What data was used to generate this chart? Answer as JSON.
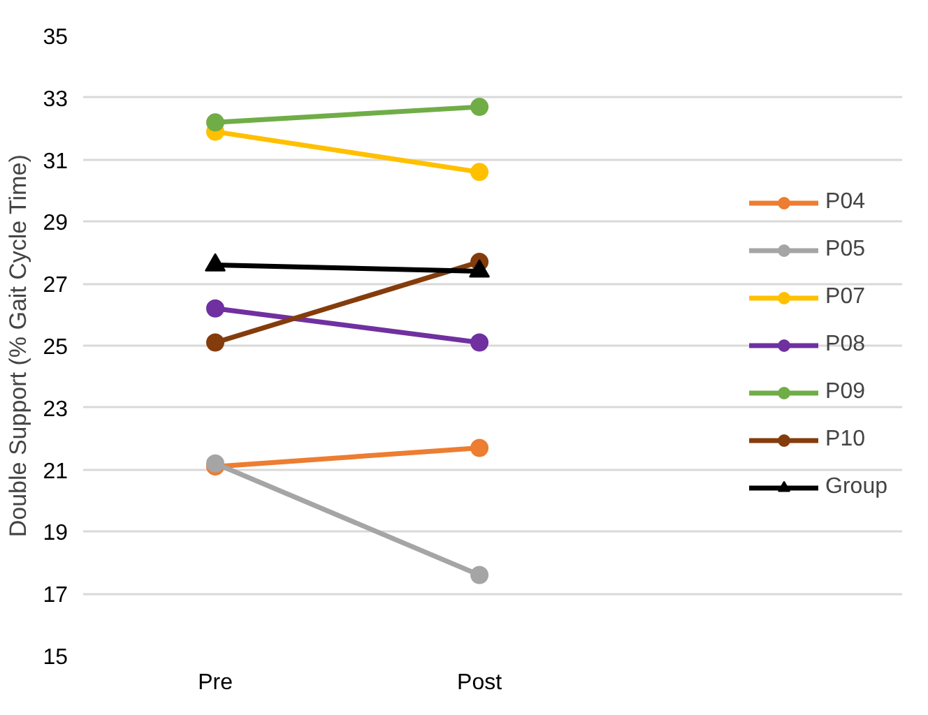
{
  "chart_data": {
    "type": "line",
    "ylabel": "Double Support (% Gait Cycle Time)",
    "categories": [
      "Pre",
      "Post"
    ],
    "series": [
      {
        "name": "P04",
        "color": "#ed7d31",
        "values": [
          21.1,
          21.7
        ]
      },
      {
        "name": "P05",
        "color": "#a5a5a5",
        "values": [
          21.2,
          17.6
        ]
      },
      {
        "name": "P07",
        "color": "#ffc000",
        "values": [
          31.9,
          30.6
        ]
      },
      {
        "name": "P08",
        "color": "#7030a0",
        "values": [
          26.2,
          25.1
        ]
      },
      {
        "name": "P09",
        "color": "#70ad47",
        "values": [
          32.2,
          32.7
        ]
      },
      {
        "name": "P10",
        "color": "#843c0c",
        "values": [
          25.1,
          27.7
        ]
      },
      {
        "name": "Group",
        "color": "#000000",
        "values": [
          27.6,
          27.4
        ],
        "marker": "triangle"
      }
    ],
    "marker": "circle",
    "ylim": [
      15,
      35
    ],
    "yticks": [
      15,
      17,
      19,
      21,
      23,
      25,
      27,
      29,
      31,
      33,
      35
    ],
    "grid": "y",
    "legend": "right"
  }
}
